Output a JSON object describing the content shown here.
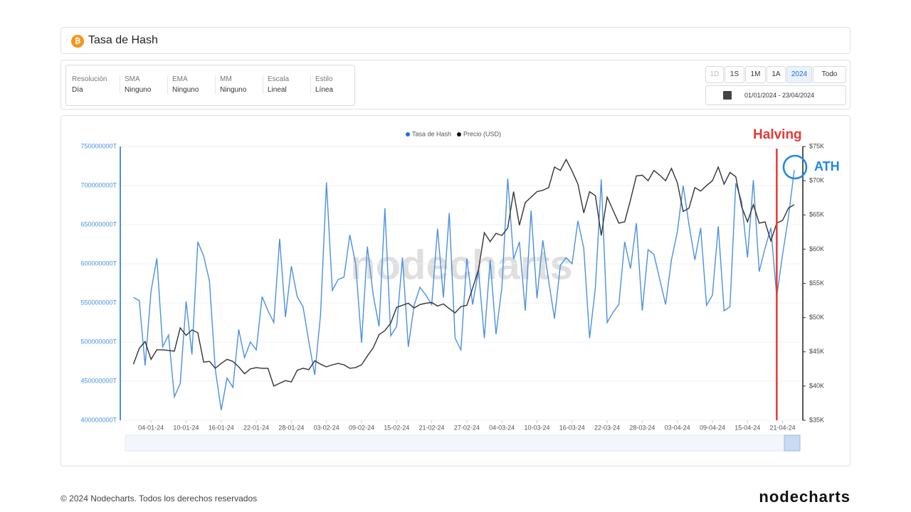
{
  "header": {
    "title": "Tasa de Hash"
  },
  "controls": {
    "options": [
      {
        "label": "Resolución",
        "value": "Día"
      },
      {
        "label": "SMA",
        "value": "Ninguno"
      },
      {
        "label": "EMA",
        "value": "Ninguno"
      },
      {
        "label": "MM",
        "value": "Ninguno"
      },
      {
        "label": "Escala",
        "value": "Lineal"
      },
      {
        "label": "Estilo",
        "value": "Línea"
      }
    ],
    "ranges": [
      "1D",
      "1S",
      "1M",
      "1A",
      "2024",
      "Todo"
    ],
    "active_range": "2024",
    "date_range": "01/01/2024 - 23/04/2024"
  },
  "chart_data": {
    "type": "line",
    "watermark": "nodecharts",
    "categories": [
      null,
      null,
      null,
      "04-01-24",
      null,
      null,
      null,
      null,
      null,
      "10-01-24",
      null,
      null,
      null,
      null,
      null,
      "16-01-24",
      null,
      null,
      null,
      null,
      null,
      "22-01-24",
      null,
      null,
      null,
      null,
      null,
      "28-01-24",
      null,
      null,
      null,
      null,
      null,
      "03-02-24",
      null,
      null,
      null,
      null,
      null,
      "09-02-24",
      null,
      null,
      null,
      null,
      null,
      "15-02-24",
      null,
      null,
      null,
      null,
      null,
      "21-02-24",
      null,
      null,
      null,
      null,
      null,
      "27-02-24",
      null,
      null,
      null,
      null,
      null,
      "04-03-24",
      null,
      null,
      null,
      null,
      null,
      "10-03-24",
      null,
      null,
      null,
      null,
      null,
      "16-03-24",
      null,
      null,
      null,
      null,
      null,
      "22-03-24",
      null,
      null,
      null,
      null,
      null,
      "28-03-24",
      null,
      null,
      null,
      null,
      null,
      "03-04-24",
      null,
      null,
      null,
      null,
      null,
      "09-04-24",
      null,
      null,
      null,
      null,
      null,
      "15-04-24",
      null,
      null,
      null,
      null,
      null,
      "21-04-24",
      null,
      null
    ],
    "series": [
      {
        "name": "Tasa de Hash",
        "color": "#4a90e2",
        "axis": "y",
        "values": [
          557000000,
          553000000,
          470000000,
          565000000,
          607000000,
          494000000,
          509000000,
          430000000,
          447000000,
          552000000,
          484000000,
          628000000,
          610000000,
          578000000,
          465000000,
          413000000,
          454000000,
          442000000,
          516000000,
          480000000,
          500000000,
          490000000,
          558000000,
          540000000,
          525000000,
          632000000,
          532000000,
          597000000,
          558000000,
          545000000,
          500000000,
          458000000,
          535000000,
          704000000,
          566000000,
          580000000,
          583000000,
          637000000,
          600000000,
          499000000,
          622000000,
          560000000,
          520000000,
          671000000,
          508000000,
          520000000,
          608000000,
          494000000,
          547000000,
          570000000,
          560000000,
          548000000,
          645000000,
          557000000,
          665000000,
          505000000,
          490000000,
          607000000,
          548000000,
          592000000,
          505000000,
          605000000,
          510000000,
          570000000,
          709000000,
          606000000,
          628000000,
          540000000,
          668000000,
          556000000,
          630000000,
          578000000,
          530000000,
          598000000,
          608000000,
          600000000,
          655000000,
          620000000,
          505000000,
          570000000,
          708000000,
          525000000,
          538000000,
          548000000,
          628000000,
          594000000,
          652000000,
          540000000,
          618000000,
          612000000,
          580000000,
          548000000,
          605000000,
          641000000,
          700000000,
          650000000,
          605000000,
          646000000,
          547000000,
          560000000,
          648000000,
          540000000,
          545000000,
          703000000,
          680000000,
          608000000,
          707000000,
          590000000,
          620000000,
          646000000,
          558000000,
          612000000,
          660000000,
          720000000
        ]
      },
      {
        "name": "Precio (USD)",
        "color": "#333333",
        "axis": "y2",
        "values": [
          43200,
          45500,
          46500,
          43900,
          45300,
          45300,
          45200,
          45100,
          48500,
          47400,
          48200,
          47800,
          43500,
          43600,
          42600,
          43300,
          43900,
          43600,
          42800,
          41800,
          42500,
          42700,
          42600,
          42600,
          40000,
          40400,
          40800,
          40600,
          42300,
          42600,
          42400,
          43700,
          43200,
          42800,
          43100,
          43300,
          43100,
          42600,
          42700,
          43100,
          44400,
          45600,
          47500,
          48100,
          49200,
          51500,
          51800,
          52100,
          51400,
          51900,
          52100,
          52200,
          51700,
          52000,
          51300,
          50700,
          51600,
          51800,
          54300,
          57000,
          62400,
          61100,
          62300,
          62000,
          63100,
          68400,
          63500,
          66800,
          67600,
          68400,
          68600,
          69000,
          72000,
          71500,
          73100,
          71400,
          69500,
          65300,
          68400,
          67800,
          62000,
          67600,
          65700,
          63800,
          64000,
          67200,
          70700,
          70800,
          70000,
          71500,
          70800,
          70000,
          71800,
          69700,
          65500,
          66000,
          69000,
          68500,
          69300,
          70000,
          72000,
          69500,
          71200,
          70600,
          66200,
          64000,
          66500,
          63800,
          64000,
          61200,
          63800,
          64200,
          66000,
          66500
        ]
      }
    ],
    "ylim": [
      400000000,
      750000000
    ],
    "yticks": [
      {
        "value": 400000000,
        "label": "400000000T"
      },
      {
        "value": 450000000,
        "label": "450000000T"
      },
      {
        "value": 500000000,
        "label": "500000000T"
      },
      {
        "value": 550000000,
        "label": "550000000T"
      },
      {
        "value": 600000000,
        "label": "600000000T"
      },
      {
        "value": 650000000,
        "label": "650000000T"
      },
      {
        "value": 700000000,
        "label": "700000000T"
      },
      {
        "value": 750000000,
        "label": "750000000T"
      }
    ],
    "y2lim": [
      35000,
      75000
    ],
    "y2ticks": [
      {
        "value": 35000,
        "label": "$35K"
      },
      {
        "value": 40000,
        "label": "$40K"
      },
      {
        "value": 45000,
        "label": "$45K"
      },
      {
        "value": 50000,
        "label": "$50K"
      },
      {
        "value": 55000,
        "label": "$55K"
      },
      {
        "value": 60000,
        "label": "$60K"
      },
      {
        "value": 65000,
        "label": "$65K"
      },
      {
        "value": 70000,
        "label": "$70K"
      },
      {
        "value": 75000,
        "label": "$75K"
      }
    ],
    "grid": true,
    "legend": "top",
    "annotations": [
      {
        "text": "Halving",
        "color": "#e53935"
      },
      {
        "text": "ATH",
        "color": "#1e88e5"
      }
    ]
  },
  "footer": {
    "copyright": "© 2024 Nodecharts. Todos los derechos reservados",
    "brand": "nodecharts"
  }
}
